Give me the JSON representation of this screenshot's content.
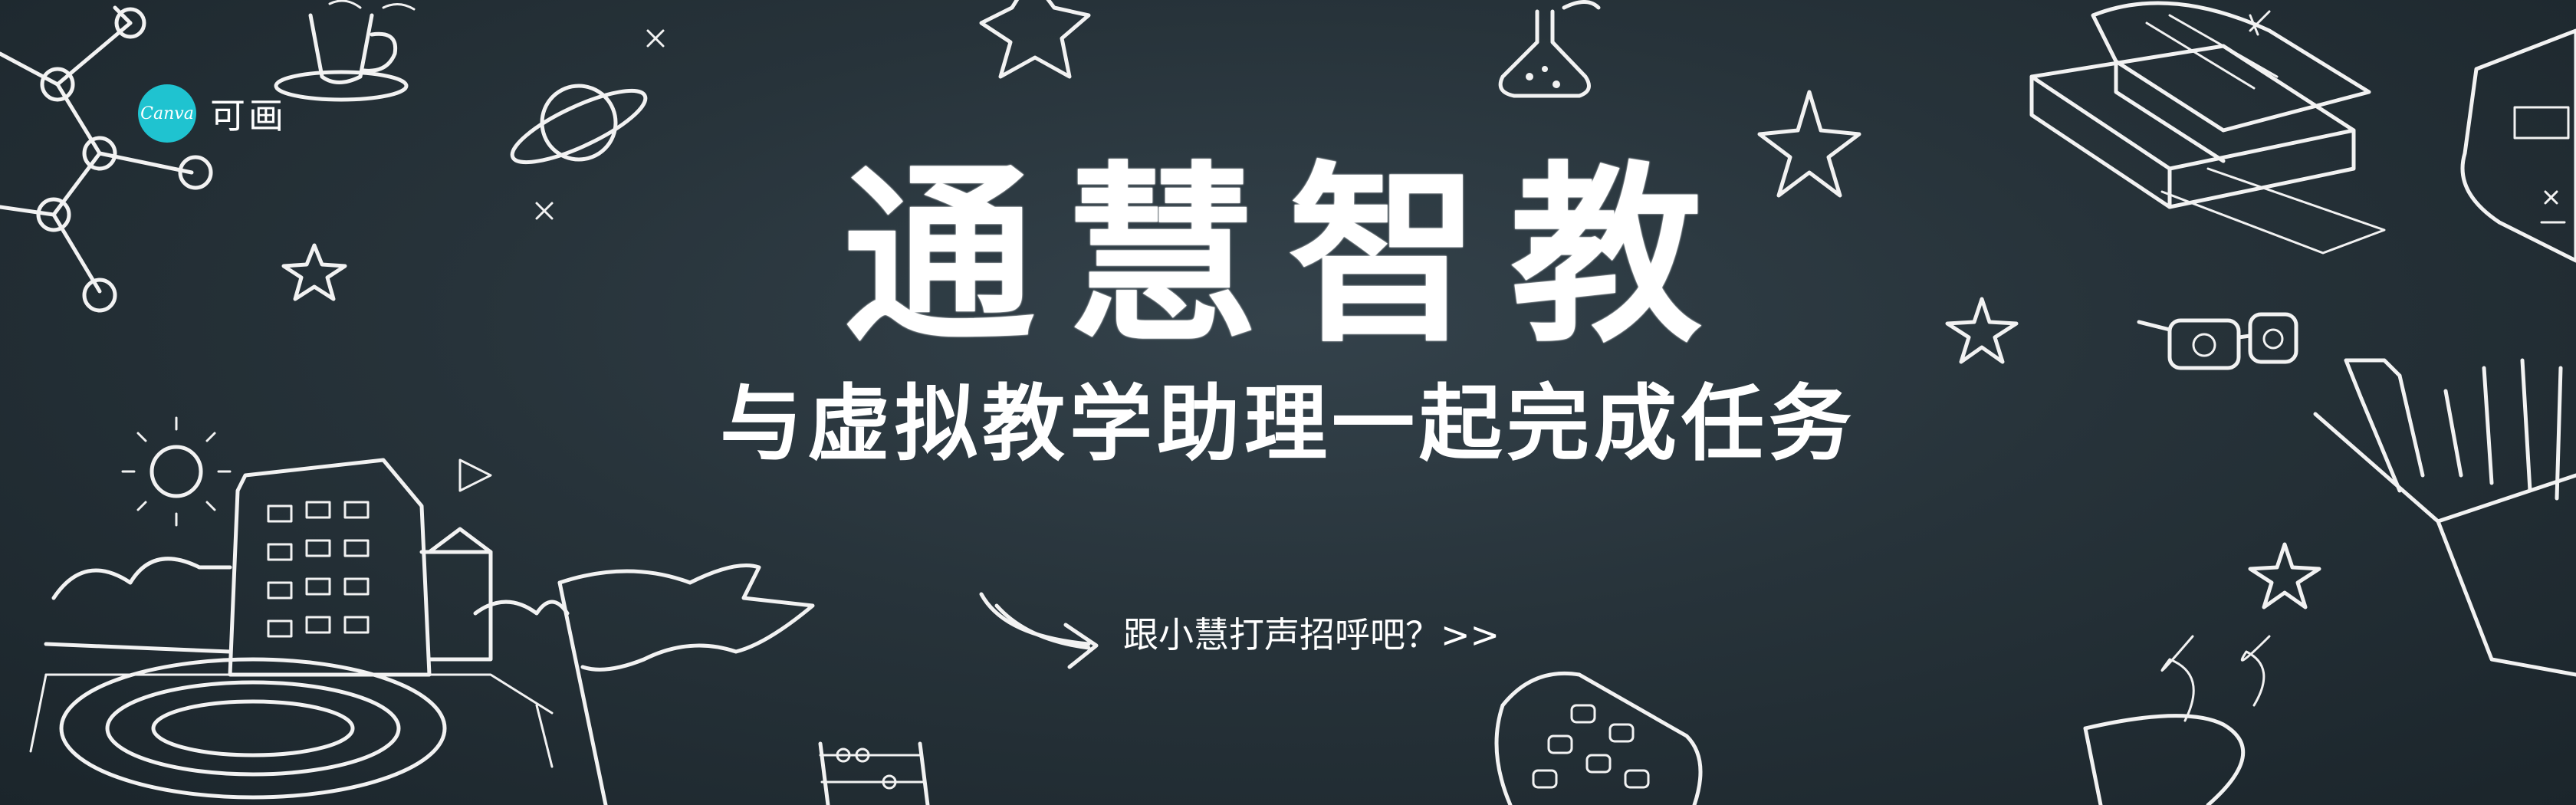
{
  "brand": {
    "badge_text": "Canva",
    "name": "可画"
  },
  "banner": {
    "title": "通慧智教",
    "subtitle": "与虚拟教学助理一起完成任务",
    "cta_label": "跟小慧打声招呼吧？>>"
  },
  "colors": {
    "background": "#27333a",
    "text": "#ffffff",
    "brand_badge": "#1fc3d0"
  },
  "decorations": [
    "molecule-icon",
    "coffee-cup-icon",
    "planet-icon",
    "sparkle-icon",
    "star-icon",
    "flask-icon",
    "books-icon",
    "calculator-icon",
    "glasses-icon",
    "pencil-cup-icon",
    "school-building-icon",
    "sun-icon",
    "running-track-icon",
    "flag-icon",
    "abacus-icon",
    "arrow-icon",
    "tea-cup-icon"
  ]
}
